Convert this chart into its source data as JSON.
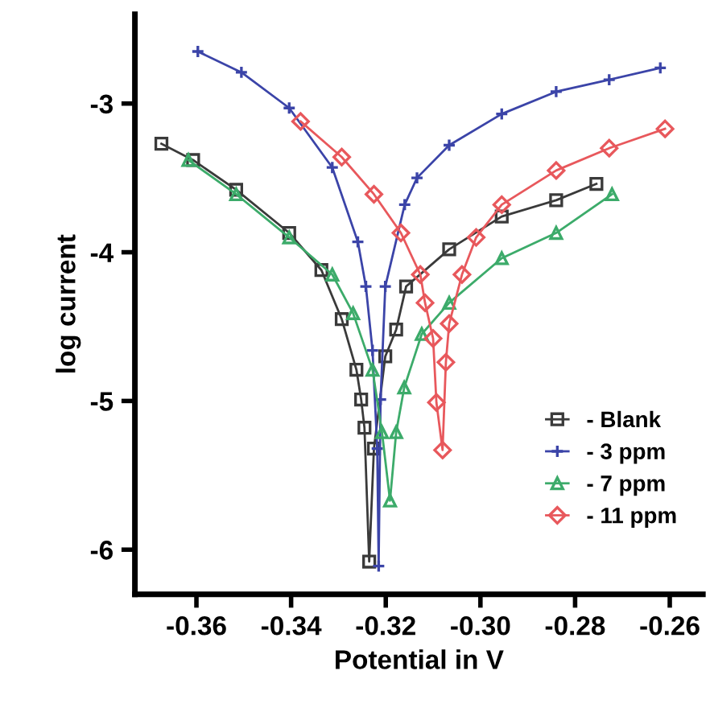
{
  "chart_data": {
    "type": "line",
    "xlabel": "Potential in V",
    "ylabel": "log current",
    "xlim": [
      -0.373,
      -0.253
    ],
    "xticks": [
      {
        "value": -0.36,
        "label": "-0.36"
      },
      {
        "value": -0.34,
        "label": "-0.34"
      },
      {
        "value": -0.32,
        "label": "-0.32"
      },
      {
        "value": -0.3,
        "label": "-0.30"
      },
      {
        "value": -0.28,
        "label": "-0.28"
      },
      {
        "value": -0.26,
        "label": "-0.26"
      }
    ],
    "ylim": [
      -6.3,
      -2.4
    ],
    "yticks": [
      -6,
      -5,
      -4,
      -3
    ],
    "grid": false,
    "legend": "bottom right",
    "line_style": "solid",
    "series": [
      {
        "name": "- Blank",
        "color": "#3a3a3a",
        "marker": "square",
        "x": [
          -0.3674,
          -0.3607,
          -0.3516,
          -0.3404,
          -0.3336,
          -0.3293,
          -0.3262,
          -0.3252,
          -0.3245,
          -0.3235,
          -0.3225,
          -0.3201,
          -0.3178,
          -0.3157,
          -0.3066,
          -0.2955,
          -0.284,
          -0.2755
        ],
        "values": [
          -3.27,
          -3.38,
          -3.58,
          -3.87,
          -4.12,
          -4.45,
          -4.79,
          -4.99,
          -5.18,
          -6.08,
          -5.32,
          -4.7,
          -4.52,
          -4.23,
          -3.98,
          -3.76,
          -3.65,
          -3.54
        ]
      },
      {
        "name": "- 3 ppm",
        "color": "#3b44a8",
        "marker": "cross",
        "x": [
          -0.3597,
          -0.3505,
          -0.3404,
          -0.3313,
          -0.3259,
          -0.3242,
          -0.3228,
          -0.3218,
          -0.3215,
          -0.3211,
          -0.3201,
          -0.316,
          -0.3134,
          -0.3066,
          -0.2955,
          -0.284,
          -0.2728,
          -0.262
        ],
        "values": [
          -2.65,
          -2.79,
          -3.03,
          -3.43,
          -3.93,
          -4.23,
          -4.66,
          -5.32,
          -6.11,
          -4.99,
          -4.23,
          -3.68,
          -3.5,
          -3.28,
          -3.07,
          -2.92,
          -2.84,
          -2.76
        ]
      },
      {
        "name": "- 7 ppm",
        "color": "#3cab6a",
        "marker": "triangle",
        "x": [
          -0.3617,
          -0.3516,
          -0.3404,
          -0.3313,
          -0.3269,
          -0.3228,
          -0.3208,
          -0.3191,
          -0.3178,
          -0.3161,
          -0.3124,
          -0.3066,
          -0.2955,
          -0.284,
          -0.2722
        ],
        "values": [
          -3.38,
          -3.61,
          -3.9,
          -4.15,
          -4.41,
          -4.79,
          -5.21,
          -5.67,
          -5.21,
          -4.91,
          -4.55,
          -4.34,
          -4.04,
          -3.87,
          -3.61
        ]
      },
      {
        "name": "- 11 ppm",
        "color": "#e8585c",
        "marker": "diamond",
        "x": [
          -0.338,
          -0.3293,
          -0.3225,
          -0.3168,
          -0.3127,
          -0.3117,
          -0.31,
          -0.3093,
          -0.308,
          -0.3073,
          -0.3066,
          -0.3039,
          -0.3009,
          -0.2955,
          -0.284,
          -0.2728,
          -0.261
        ],
        "values": [
          -3.12,
          -3.36,
          -3.61,
          -3.87,
          -4.15,
          -4.34,
          -4.58,
          -5.01,
          -5.33,
          -4.74,
          -4.48,
          -4.15,
          -3.9,
          -3.68,
          -3.45,
          -3.3,
          -3.17
        ]
      }
    ]
  }
}
